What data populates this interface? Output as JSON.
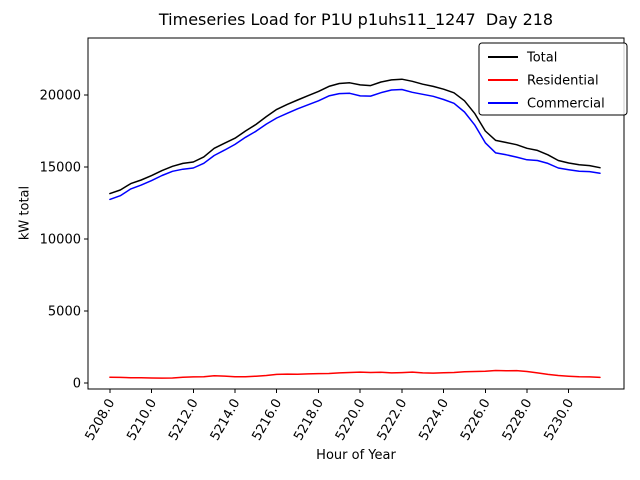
{
  "chart_data": {
    "type": "line",
    "title": "Timeseries Load for P1U p1uhs11_1247  Day 218",
    "xlabel": "Hour of Year",
    "ylabel": "kW total",
    "xlim": [
      5206.95,
      5232.65
    ],
    "ylim": [
      -417,
      23958
    ],
    "grid": false,
    "xticks": [
      5208,
      5210,
      5212,
      5214,
      5216,
      5218,
      5220,
      5222,
      5224,
      5226,
      5228,
      5230
    ],
    "xtick_labels": [
      "5208.0",
      "5210.0",
      "5212.0",
      "5214.0",
      "5216.0",
      "5218.0",
      "5220.0",
      "5222.0",
      "5224.0",
      "5226.0",
      "5228.0",
      "5230.0"
    ],
    "xtick_rotation_deg": 60,
    "yticks": [
      0,
      5000,
      10000,
      15000,
      20000
    ],
    "ytick_labels": [
      "0",
      "5000",
      "10000",
      "15000",
      "20000"
    ],
    "legend": {
      "position": "upper right",
      "entries": [
        "Total",
        "Residential",
        "Commercial"
      ]
    },
    "x": [
      5208.0,
      5208.5,
      5209.0,
      5209.5,
      5210.0,
      5210.5,
      5211.0,
      5211.5,
      5212.0,
      5212.5,
      5213.0,
      5213.5,
      5214.0,
      5214.5,
      5215.0,
      5215.5,
      5216.0,
      5216.5,
      5217.0,
      5217.5,
      5218.0,
      5218.5,
      5219.0,
      5219.5,
      5220.0,
      5220.5,
      5221.0,
      5221.5,
      5222.0,
      5222.5,
      5223.0,
      5223.5,
      5224.0,
      5224.5,
      5225.0,
      5225.5,
      5226.0,
      5226.5,
      5227.0,
      5227.5,
      5228.0,
      5228.5,
      5229.0,
      5229.5,
      5230.0,
      5230.5,
      5231.0,
      5231.5
    ],
    "series": [
      {
        "name": "Total",
        "color": "#000000",
        "values": [
          13150,
          13400,
          13850,
          14100,
          14400,
          14750,
          15050,
          15250,
          15350,
          15700,
          16300,
          16650,
          17000,
          17500,
          17950,
          18500,
          19000,
          19350,
          19650,
          19950,
          20250,
          20600,
          20800,
          20850,
          20700,
          20650,
          20900,
          21050,
          21100,
          20950,
          20750,
          20600,
          20400,
          20150,
          19600,
          18700,
          17500,
          16850,
          16700,
          16550,
          16300,
          16150,
          15850,
          15450,
          15280,
          15150,
          15100,
          14950
        ]
      },
      {
        "name": "Residential",
        "color": "#ff0000",
        "values": [
          400,
          390,
          370,
          360,
          345,
          340,
          350,
          400,
          420,
          440,
          500,
          480,
          430,
          440,
          470,
          520,
          600,
          620,
          610,
          630,
          650,
          660,
          700,
          730,
          760,
          730,
          740,
          700,
          720,
          760,
          700,
          690,
          710,
          730,
          780,
          800,
          820,
          870,
          850,
          860,
          800,
          700,
          600,
          520,
          470,
          440,
          420,
          390
        ]
      },
      {
        "name": "Commercial",
        "color": "#0000ff",
        "values": [
          12750,
          13010,
          13480,
          13740,
          14055,
          14410,
          14700,
          14850,
          14930,
          15260,
          15800,
          16170,
          16570,
          17060,
          17480,
          17980,
          18400,
          18730,
          19040,
          19320,
          19600,
          19940,
          20100,
          20120,
          19940,
          19920,
          20160,
          20350,
          20380,
          20190,
          20050,
          19910,
          19690,
          19420,
          18820,
          17900,
          16680,
          15980,
          15850,
          15690,
          15500,
          15450,
          15250,
          14930,
          14810,
          14710,
          14680,
          14560
        ]
      }
    ]
  }
}
